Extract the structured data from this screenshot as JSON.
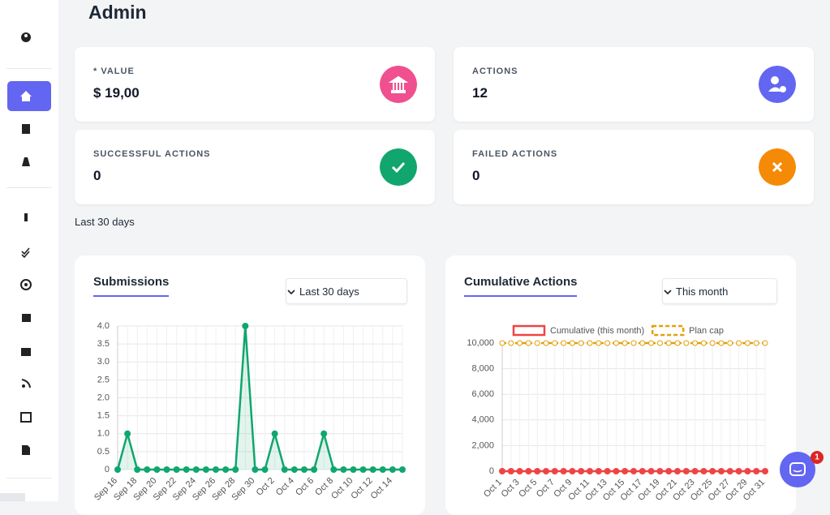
{
  "header": {
    "title": "Admin"
  },
  "cards": [
    {
      "label": "* VALUE",
      "value": "$ 19,00"
    },
    {
      "label": "ACTIONS",
      "value": "12"
    },
    {
      "label": "SUCCESSFUL ACTIONS",
      "value": "0"
    },
    {
      "label": "FAILED ACTIONS",
      "value": "0"
    }
  ],
  "period_note": "Last 30 days",
  "chat_badge": "1",
  "chart_data": [
    {
      "type": "line",
      "title": "Submissions",
      "selector": "Last 30 days",
      "categories": [
        "Sep 16",
        null,
        "Sep 18",
        null,
        "Sep 20",
        null,
        "Sep 22",
        null,
        "Sep 24",
        null,
        "Sep 26",
        null,
        "Sep 28",
        null,
        "Sep 30",
        null,
        "Oct 2",
        null,
        "Oct 4",
        null,
        "Oct 6",
        null,
        "Oct 8",
        null,
        "Oct 10",
        null,
        "Oct 12",
        null,
        "Oct 14",
        null
      ],
      "series": [
        {
          "name": "Submissions",
          "color": "#10a66e",
          "area": true,
          "values": [
            0,
            1,
            0,
            0,
            0,
            0,
            0,
            0,
            0,
            0,
            0,
            0,
            0,
            4,
            0,
            0,
            1,
            0,
            0,
            0,
            0,
            1,
            0,
            0,
            0,
            0,
            0,
            0,
            0,
            0
          ]
        }
      ],
      "ylim": [
        0,
        4
      ],
      "yticks": [
        0,
        0.5,
        {
          "value": 1,
          "label": "1.0"
        },
        1.5,
        {
          "value": 2,
          "label": "2.0"
        },
        2.5,
        {
          "value": 3,
          "label": "3.0"
        },
        3.5,
        {
          "value": 4,
          "label": "4.0"
        }
      ],
      "grid": true,
      "legend": false
    },
    {
      "type": "line",
      "title": "Cumulative Actions",
      "selector": "This month",
      "categories": [
        "Oct 1",
        null,
        "Oct 3",
        null,
        "Oct 5",
        null,
        "Oct 7",
        null,
        "Oct 9",
        null,
        "Oct 11",
        null,
        "Oct 13",
        null,
        "Oct 15",
        null,
        "Oct 17",
        null,
        "Oct 19",
        null,
        "Oct 21",
        null,
        "Oct 23",
        null,
        "Oct 25",
        null,
        "Oct 27",
        null,
        "Oct 29",
        null,
        "Oct 31"
      ],
      "series": [
        {
          "name": "Cumulative (this month)",
          "color": "#ef4444",
          "values": [
            0,
            0,
            0,
            0,
            0,
            0,
            0,
            0,
            0,
            0,
            0,
            0,
            0,
            0,
            0,
            0,
            0,
            0,
            0,
            0,
            0,
            0,
            0,
            0,
            0,
            0,
            0,
            0,
            0,
            0,
            0
          ]
        },
        {
          "name": "Plan cap",
          "color": "#e3a008",
          "dash": true,
          "values": [
            10000,
            10000,
            10000,
            10000,
            10000,
            10000,
            10000,
            10000,
            10000,
            10000,
            10000,
            10000,
            10000,
            10000,
            10000,
            10000,
            10000,
            10000,
            10000,
            10000,
            10000,
            10000,
            10000,
            10000,
            10000,
            10000,
            10000,
            10000,
            10000,
            10000,
            10000
          ]
        }
      ],
      "ylim": [
        0,
        10000
      ],
      "yticks": [
        0,
        {
          "value": 2000,
          "label": "2,000"
        },
        {
          "value": 4000,
          "label": "4,000"
        },
        {
          "value": 6000,
          "label": "6,000"
        },
        {
          "value": 8000,
          "label": "8,000"
        },
        {
          "value": 10000,
          "label": "10,000"
        }
      ],
      "grid": true,
      "legend": true
    }
  ]
}
